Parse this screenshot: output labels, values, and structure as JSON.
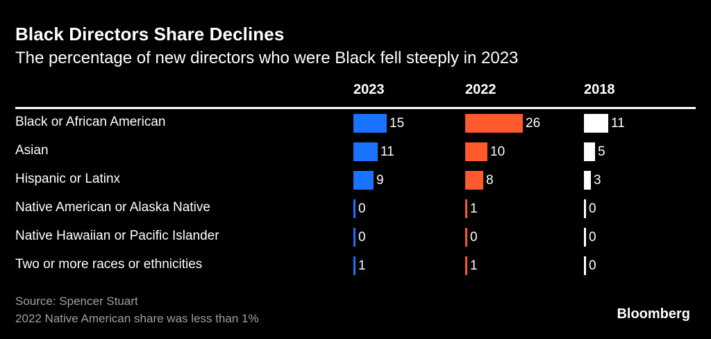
{
  "chart_data": {
    "type": "bar",
    "orientation": "horizontal",
    "title": "Black Directors Share Declines",
    "subtitle": "The percentage of new directors who were Black fell steeply in 2023",
    "categories": [
      "Black or African American",
      "Asian",
      "Hispanic or Latinx",
      "Native American or Alaska Native",
      "Native Hawaiian or Pacific Islander",
      "Two or more races or ethnicities"
    ],
    "series": [
      {
        "name": "2023",
        "color": "#1a73ff",
        "values": [
          15,
          11,
          9,
          0,
          0,
          1
        ]
      },
      {
        "name": "2022",
        "color": "#ff5a2c",
        "values": [
          26,
          10,
          8,
          1,
          0,
          1
        ]
      },
      {
        "name": "2018",
        "color": "#ffffff",
        "values": [
          11,
          5,
          3,
          0,
          0,
          0
        ]
      }
    ],
    "unit": "%",
    "xlim": [
      0,
      26
    ]
  },
  "footer": {
    "source": "Source: Spencer Stuart",
    "note": "2022 Native American share was less than 1%",
    "logo": "Bloomberg"
  }
}
